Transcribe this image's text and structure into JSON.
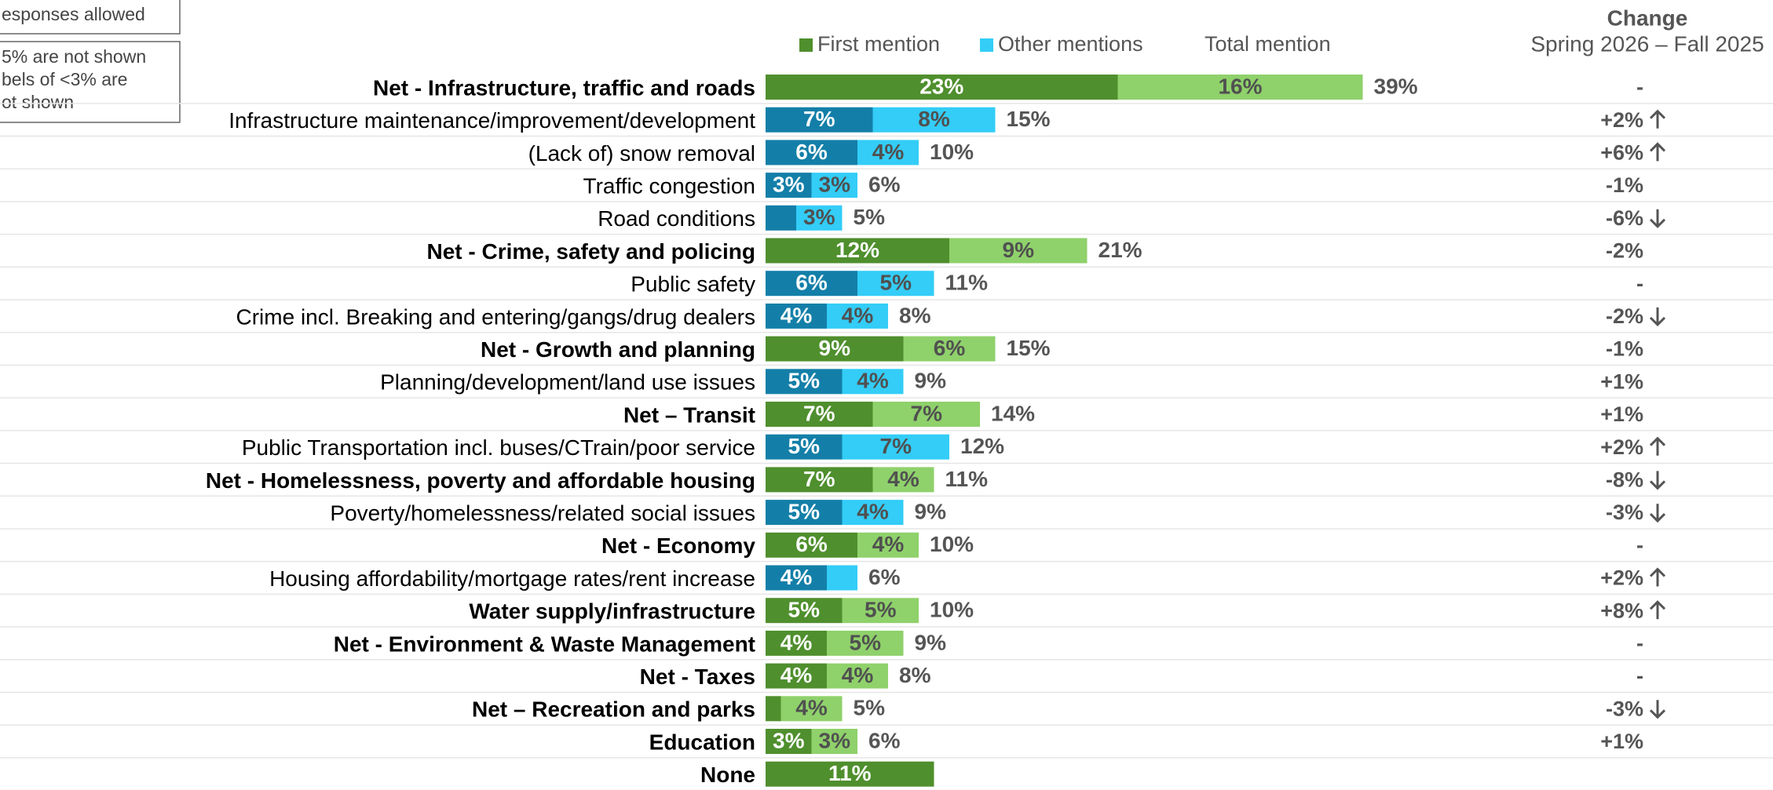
{
  "chart_data": {
    "type": "stacked-bar-horizontal",
    "notes": [
      "esponses allowed",
      "5% are not shown",
      "bels of <3% are",
      "ot shown"
    ],
    "legend": {
      "total_label": "Total mention"
    },
    "change_header": {
      "title": "Change",
      "subtitle": "Spring 2026 – Fall 2025"
    },
    "categories": [
      "Net - Infrastructure, traffic and roads",
      "Infrastructure maintenance/improvement/development",
      "(Lack of) snow removal",
      "Traffic congestion",
      "Road conditions",
      "Net - Crime, safety and policing",
      "Public safety",
      "Crime incl. Breaking and entering/gangs/drug dealers",
      "Net - Growth and planning",
      "Planning/development/land use issues",
      "Net – Transit",
      "Public Transportation incl. buses/CTrain/poor service",
      "Net - Homelessness, poverty and affordable housing",
      "Poverty/homelessness/related social issues",
      "Net - Economy",
      "Housing affordability/mortgage rates/rent increase",
      "Water supply/infrastructure",
      "Net - Environment & Waste Management",
      "Net - Taxes",
      "Net – Recreation and parks",
      "Education",
      "None"
    ],
    "row_kind": [
      "net",
      "item",
      "item",
      "item",
      "item",
      "net",
      "item",
      "item",
      "net",
      "item",
      "net",
      "item",
      "net",
      "item",
      "net",
      "item",
      "net",
      "net",
      "net",
      "net",
      "net",
      "net"
    ],
    "palette": {
      "net": [
        "#4f8f2d",
        "#8fd16b"
      ],
      "item": [
        "#137fa8",
        "#33cdf7"
      ]
    },
    "xlim": [
      0,
      60
    ],
    "series": [
      {
        "name": "First mention",
        "color": "#4f8f2d",
        "values": [
          23,
          7,
          6,
          3,
          2,
          12,
          6,
          4,
          9,
          5,
          7,
          5,
          7,
          5,
          6,
          4,
          5,
          4,
          4,
          1,
          3,
          11
        ],
        "value_labels": [
          "23%",
          "7%",
          "6%",
          "3%",
          null,
          "12%",
          "6%",
          "4%",
          "9%",
          "5%",
          "7%",
          "5%",
          "7%",
          "5%",
          "6%",
          "4%",
          "5%",
          "4%",
          "4%",
          null,
          "3%",
          "11%"
        ]
      },
      {
        "name": "Other mentions",
        "color": "#33cdf7",
        "values": [
          16,
          8,
          4,
          3,
          3,
          9,
          5,
          4,
          6,
          4,
          7,
          7,
          4,
          4,
          4,
          2,
          5,
          5,
          4,
          4,
          3,
          null
        ],
        "value_labels": [
          "16%",
          "8%",
          "4%",
          "3%",
          "3%",
          "9%",
          "5%",
          "4%",
          "6%",
          "4%",
          "7%",
          "7%",
          "4%",
          "4%",
          "4%",
          null,
          "5%",
          "5%",
          "4%",
          "4%",
          "3%",
          null
        ]
      }
    ],
    "totals": {
      "values": [
        39,
        15,
        10,
        6,
        5,
        21,
        11,
        8,
        15,
        9,
        14,
        12,
        11,
        9,
        10,
        6,
        10,
        9,
        8,
        5,
        6,
        null
      ],
      "value_labels": [
        "39%",
        "15%",
        "10%",
        "6%",
        "5%",
        "21%",
        "11%",
        "8%",
        "15%",
        "9%",
        "14%",
        "12%",
        "11%",
        "9%",
        "10%",
        "6%",
        "10%",
        "9%",
        "8%",
        "5%",
        "6%",
        null
      ]
    },
    "change": [
      "-",
      "+2%",
      "+6%",
      "-1%",
      "-6%",
      "-2%",
      "-",
      "-2%",
      "-1%",
      "+1%",
      "+1%",
      "+2%",
      "-8%",
      "-3%",
      "-",
      "+2%",
      "+8%",
      "-",
      "-",
      "-3%",
      "+1%",
      null
    ],
    "trend": [
      null,
      "up",
      "up",
      null,
      "down",
      null,
      null,
      "down",
      null,
      null,
      null,
      "up",
      "down",
      "down",
      null,
      "up",
      "up",
      null,
      null,
      "down",
      null,
      null
    ]
  }
}
